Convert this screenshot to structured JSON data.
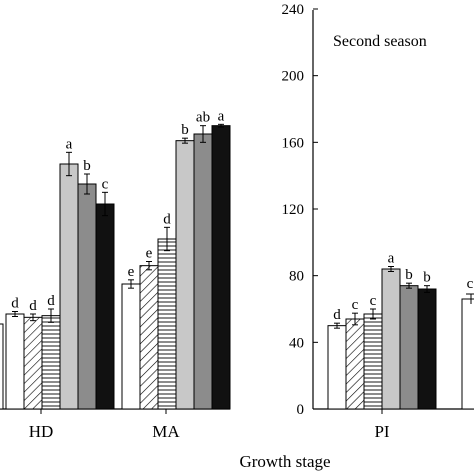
{
  "chart_data": [
    {
      "type": "bar",
      "panel": "first",
      "title": "",
      "xlabel": "Growth stage",
      "ylabel": "",
      "ylim": [
        0,
        240
      ],
      "categories": [
        "HD",
        "MA"
      ],
      "treatments": 6,
      "series_styles": [
        "white",
        "hatch-diag",
        "hatch-horiz",
        "light-gray",
        "mid-gray",
        "black"
      ],
      "values": [
        [
          57,
          55,
          56,
          147,
          135,
          123
        ],
        [
          75,
          86,
          102,
          161,
          165,
          170
        ]
      ],
      "errors": [
        [
          1.5,
          2,
          4,
          7,
          6,
          7
        ],
        [
          2.5,
          2.5,
          7,
          1.5,
          5,
          0.8
        ]
      ],
      "letters": [
        [
          "d",
          "d",
          "d",
          "a",
          "b",
          "c"
        ],
        [
          "e",
          "e",
          "d",
          "b",
          "ab",
          "a"
        ]
      ]
    },
    {
      "type": "bar",
      "panel": "second",
      "title": "Second season",
      "xlabel": "",
      "ylabel": "",
      "ylim": [
        0,
        240
      ],
      "yticks": [
        0,
        40,
        80,
        120,
        160,
        200,
        240
      ],
      "categories": [
        "PI"
      ],
      "values": [
        [
          50,
          54,
          57,
          84,
          74,
          72
        ]
      ],
      "errors": [
        [
          1.5,
          3.5,
          3,
          1.5,
          1.5,
          2
        ]
      ],
      "letters": [
        [
          "d",
          "c",
          "c",
          "a",
          "b",
          "b"
        ]
      ],
      "partial": {
        "value": 66,
        "error": 3,
        "letter": "c"
      }
    }
  ]
}
